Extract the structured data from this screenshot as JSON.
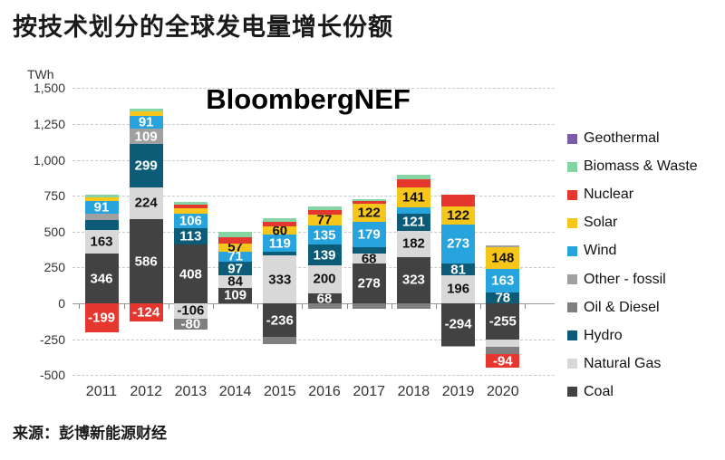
{
  "title": "按技术划分的全球发电量增长份额",
  "watermark": "BloombergNEF",
  "source": "来源：彭博新能源财经",
  "y_axis": {
    "unit": "TWh",
    "ticks": [
      "1,500",
      "1,250",
      "1,000",
      "750",
      "500",
      "250",
      "0",
      "-250",
      "-500"
    ]
  },
  "legend": [
    "Geothermal",
    "Biomass & Waste",
    "Nuclear",
    "Solar",
    "Wind",
    "Other - fossil",
    "Oil & Diesel",
    "Hydro",
    "Natural Gas",
    "Coal"
  ],
  "colors": {
    "Geothermal": "#7a5ca8",
    "Biomass & Waste": "#85d4a4",
    "Nuclear": "#e5372e",
    "Solar": "#f6c61b",
    "Wind": "#27a3dd",
    "Other - fossil": "#a0a0a0",
    "Oil & Diesel": "#7f7f7f",
    "Hydro": "#0d5c77",
    "Natural Gas": "#d8d8d8",
    "Coal": "#424242"
  },
  "dark_text_techs": [
    "Natural Gas",
    "Solar"
  ],
  "chart_data": {
    "type": "stacked-bar",
    "unit": "TWh",
    "y_range": [
      -500,
      1500
    ],
    "grid": true,
    "legend_position": "right",
    "x": [
      "2011",
      "2012",
      "2013",
      "2014",
      "2015",
      "2016",
      "2017",
      "2018",
      "2019",
      "2020"
    ],
    "stack_order": [
      "Coal",
      "Natural Gas",
      "Hydro",
      "Oil & Diesel",
      "Other - fossil",
      "Wind",
      "Solar",
      "Nuclear",
      "Biomass & Waste",
      "Geothermal"
    ],
    "bars": [
      {
        "year": "2011",
        "segments": [
          {
            "tech": "Coal",
            "value": 346,
            "label": "346"
          },
          {
            "tech": "Natural Gas",
            "value": 163,
            "label": "163"
          },
          {
            "tech": "Hydro",
            "value": 70
          },
          {
            "tech": "Other - fossil",
            "value": 45
          },
          {
            "tech": "Wind",
            "value": 91,
            "label": "91"
          },
          {
            "tech": "Solar",
            "value": 25
          },
          {
            "tech": "Biomass & Waste",
            "value": 20
          },
          {
            "tech": "Nuclear",
            "value": -199,
            "label": "-199"
          }
        ]
      },
      {
        "year": "2012",
        "segments": [
          {
            "tech": "Coal",
            "value": 586,
            "label": "586"
          },
          {
            "tech": "Natural Gas",
            "value": 224,
            "label": "224"
          },
          {
            "tech": "Hydro",
            "value": 299,
            "label": "299"
          },
          {
            "tech": "Other - fossil",
            "value": 109,
            "label": "109"
          },
          {
            "tech": "Wind",
            "value": 91,
            "label": "91"
          },
          {
            "tech": "Solar",
            "value": 30
          },
          {
            "tech": "Biomass & Waste",
            "value": 18
          },
          {
            "tech": "Nuclear",
            "value": -124,
            "label": "-124"
          }
        ]
      },
      {
        "year": "2013",
        "segments": [
          {
            "tech": "Coal",
            "value": 408,
            "label": "408"
          },
          {
            "tech": "Hydro",
            "value": 113,
            "label": "113"
          },
          {
            "tech": "Wind",
            "value": 106,
            "label": "106"
          },
          {
            "tech": "Solar",
            "value": 35
          },
          {
            "tech": "Nuclear",
            "value": 25
          },
          {
            "tech": "Biomass & Waste",
            "value": 20
          },
          {
            "tech": "Natural Gas",
            "value": -106,
            "label": "-106"
          },
          {
            "tech": "Oil & Diesel",
            "value": -80,
            "label": "-80"
          }
        ]
      },
      {
        "year": "2014",
        "segments": [
          {
            "tech": "Coal",
            "value": 109,
            "label": "109"
          },
          {
            "tech": "Natural Gas",
            "value": 84,
            "label": "84"
          },
          {
            "tech": "Hydro",
            "value": 97,
            "label": "97"
          },
          {
            "tech": "Wind",
            "value": 71,
            "label": "71"
          },
          {
            "tech": "Solar",
            "value": 57,
            "label": "57"
          },
          {
            "tech": "Nuclear",
            "value": 45
          },
          {
            "tech": "Biomass & Waste",
            "value": 37
          }
        ]
      },
      {
        "year": "2015",
        "segments": [
          {
            "tech": "Natural Gas",
            "value": 333,
            "label": "333"
          },
          {
            "tech": "Hydro",
            "value": 25
          },
          {
            "tech": "Wind",
            "value": 119,
            "label": "119"
          },
          {
            "tech": "Solar",
            "value": 60,
            "label": "60"
          },
          {
            "tech": "Nuclear",
            "value": 30
          },
          {
            "tech": "Biomass & Waste",
            "value": 25
          },
          {
            "tech": "Coal",
            "value": -236,
            "label": "-236"
          },
          {
            "tech": "Oil & Diesel",
            "value": -45
          }
        ]
      },
      {
        "year": "2016",
        "segments": [
          {
            "tech": "Coal",
            "value": 68,
            "label": "68"
          },
          {
            "tech": "Natural Gas",
            "value": 200,
            "label": "200"
          },
          {
            "tech": "Hydro",
            "value": 139,
            "label": "139"
          },
          {
            "tech": "Wind",
            "value": 135,
            "label": "135"
          },
          {
            "tech": "Solar",
            "value": 77,
            "label": "77"
          },
          {
            "tech": "Nuclear",
            "value": 30
          },
          {
            "tech": "Biomass & Waste",
            "value": 25
          },
          {
            "tech": "Oil & Diesel",
            "value": -40
          }
        ]
      },
      {
        "year": "2017",
        "segments": [
          {
            "tech": "Coal",
            "value": 278,
            "label": "278"
          },
          {
            "tech": "Natural Gas",
            "value": 68,
            "label": "68"
          },
          {
            "tech": "Hydro",
            "value": 45
          },
          {
            "tech": "Wind",
            "value": 179,
            "label": "179"
          },
          {
            "tech": "Solar",
            "value": 122,
            "label": "122"
          },
          {
            "tech": "Nuclear",
            "value": 22
          },
          {
            "tech": "Biomass & Waste",
            "value": 12
          },
          {
            "tech": "Oil & Diesel",
            "value": -35
          }
        ]
      },
      {
        "year": "2018",
        "segments": [
          {
            "tech": "Coal",
            "value": 323,
            "label": "323"
          },
          {
            "tech": "Natural Gas",
            "value": 182,
            "label": "182"
          },
          {
            "tech": "Hydro",
            "value": 121,
            "label": "121"
          },
          {
            "tech": "Wind",
            "value": 40
          },
          {
            "tech": "Solar",
            "value": 141,
            "label": "141"
          },
          {
            "tech": "Nuclear",
            "value": 60
          },
          {
            "tech": "Biomass & Waste",
            "value": 30
          },
          {
            "tech": "Oil & Diesel",
            "value": -40
          }
        ]
      },
      {
        "year": "2019",
        "segments": [
          {
            "tech": "Natural Gas",
            "value": 196,
            "label": "196"
          },
          {
            "tech": "Hydro",
            "value": 81,
            "label": "81"
          },
          {
            "tech": "Wind",
            "value": 273,
            "label": "273"
          },
          {
            "tech": "Solar",
            "value": 122,
            "label": "122"
          },
          {
            "tech": "Nuclear",
            "value": 85
          },
          {
            "tech": "Coal",
            "value": -294,
            "label": "-294"
          },
          {
            "tech": "Other - fossil",
            "value": -12
          }
        ]
      },
      {
        "year": "2020",
        "segments": [
          {
            "tech": "Hydro",
            "value": 78,
            "label": "78"
          },
          {
            "tech": "Wind",
            "value": 163,
            "label": "163"
          },
          {
            "tech": "Solar",
            "value": 148,
            "label": "148"
          },
          {
            "tech": "Other - fossil",
            "value": 15
          },
          {
            "tech": "Coal",
            "value": -255,
            "label": "-255"
          },
          {
            "tech": "Natural Gas",
            "value": -50
          },
          {
            "tech": "Oil & Diesel",
            "value": -50
          },
          {
            "tech": "Nuclear",
            "value": -94,
            "label": "-94"
          }
        ]
      }
    ]
  }
}
